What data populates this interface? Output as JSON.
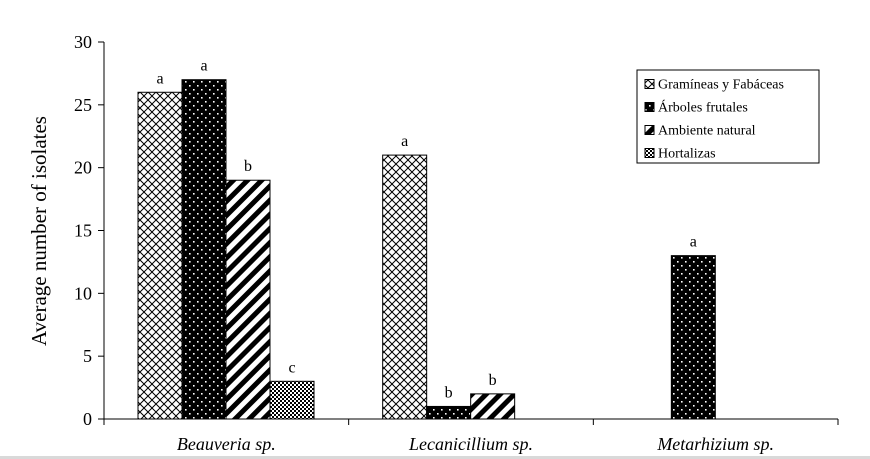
{
  "chart_data": {
    "type": "bar",
    "ylabel": "Average number of isolates",
    "xlabel": "",
    "ylim": [
      0,
      30
    ],
    "yticks": [
      0,
      5,
      10,
      15,
      20,
      25,
      30
    ],
    "grid": false,
    "legend_position": "top-right",
    "categories": [
      "Beauveria sp.",
      "Lecanicillium sp.",
      "Metarhizium sp."
    ],
    "series": [
      {
        "name": "Gramíneas y Fabáceas",
        "pattern": "crosshatch",
        "values": [
          26,
          21,
          null
        ],
        "labels": [
          "a",
          "a",
          ""
        ]
      },
      {
        "name": "Árboles frutales",
        "pattern": "dots-on-black",
        "values": [
          27,
          1,
          13
        ],
        "labels": [
          "a",
          "b",
          "a"
        ]
      },
      {
        "name": "Ambiente natural",
        "pattern": "diagonal-stripes",
        "values": [
          19,
          2,
          null
        ],
        "labels": [
          "b",
          "b",
          ""
        ]
      },
      {
        "name": "Hortalizas",
        "pattern": "fine-checker",
        "values": [
          3,
          null,
          null
        ],
        "labels": [
          "c",
          "",
          ""
        ]
      }
    ],
    "colors": {
      "ink": "#000000",
      "background": "#ffffff"
    }
  }
}
